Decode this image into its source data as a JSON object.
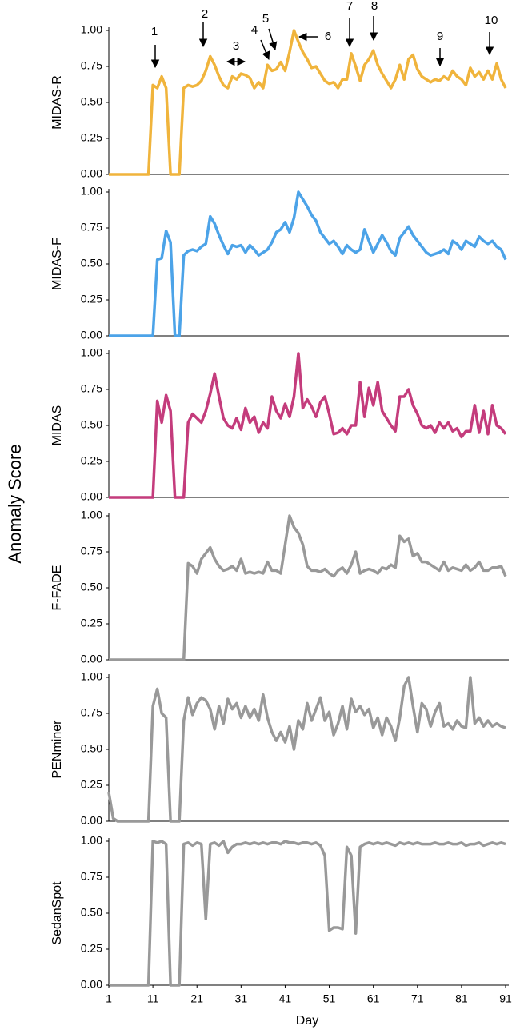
{
  "ylabel": "Anomaly Score",
  "chart_data": [
    {
      "type": "line",
      "ylabel": "MIDAS-R",
      "color": "#f0b43c",
      "ylim": [
        0,
        1
      ],
      "yticks": [
        {
          "value": 0,
          "label": "0.00"
        },
        {
          "value": 0.25,
          "label": "0.25"
        },
        {
          "value": 0.5,
          "label": "0.50"
        },
        {
          "value": 0.75,
          "label": "0.75"
        },
        {
          "value": 1,
          "label": "1.00"
        }
      ],
      "annotations": [
        "1",
        "2",
        "3",
        "4",
        "5",
        "6",
        "7",
        "8",
        "9",
        "10"
      ],
      "values": [
        0,
        0,
        0,
        0,
        0,
        0,
        0,
        0,
        0,
        0,
        0.62,
        0.6,
        0.68,
        0.6,
        0,
        0,
        0,
        0.6,
        0.62,
        0.61,
        0.62,
        0.65,
        0.72,
        0.82,
        0.76,
        0.68,
        0.62,
        0.6,
        0.68,
        0.66,
        0.7,
        0.69,
        0.67,
        0.6,
        0.64,
        0.6,
        0.76,
        0.72,
        0.73,
        0.78,
        0.72,
        0.85,
        1.0,
        0.92,
        0.85,
        0.8,
        0.74,
        0.75,
        0.7,
        0.65,
        0.63,
        0.64,
        0.6,
        0.66,
        0.66,
        0.84,
        0.75,
        0.65,
        0.76,
        0.8,
        0.86,
        0.76,
        0.7,
        0.65,
        0.6,
        0.66,
        0.76,
        0.66,
        0.8,
        0.83,
        0.73,
        0.68,
        0.66,
        0.64,
        0.66,
        0.65,
        0.68,
        0.66,
        0.72,
        0.68,
        0.66,
        0.62,
        0.74,
        0.68,
        0.71,
        0.66,
        0.72,
        0.66,
        0.77,
        0.66,
        0.6
      ]
    },
    {
      "type": "line",
      "ylabel": "MIDAS-F",
      "color": "#4ca3e8",
      "ylim": [
        0,
        1
      ],
      "yticks": [
        {
          "value": 0,
          "label": "0.00"
        },
        {
          "value": 0.25,
          "label": "0.25"
        },
        {
          "value": 0.5,
          "label": "0.50"
        },
        {
          "value": 0.75,
          "label": "0.75"
        },
        {
          "value": 1,
          "label": "1.00"
        }
      ],
      "values": [
        0,
        0,
        0,
        0,
        0,
        0,
        0,
        0,
        0,
        0,
        0,
        0.53,
        0.54,
        0.73,
        0.65,
        0,
        0,
        0.56,
        0.59,
        0.6,
        0.59,
        0.62,
        0.64,
        0.83,
        0.78,
        0.7,
        0.63,
        0.57,
        0.63,
        0.62,
        0.63,
        0.58,
        0.63,
        0.6,
        0.56,
        0.58,
        0.6,
        0.65,
        0.72,
        0.74,
        0.79,
        0.72,
        0.82,
        1.0,
        0.95,
        0.9,
        0.84,
        0.8,
        0.72,
        0.68,
        0.64,
        0.66,
        0.62,
        0.57,
        0.63,
        0.6,
        0.58,
        0.6,
        0.74,
        0.66,
        0.58,
        0.64,
        0.7,
        0.65,
        0.59,
        0.56,
        0.68,
        0.72,
        0.76,
        0.7,
        0.66,
        0.62,
        0.58,
        0.56,
        0.57,
        0.58,
        0.6,
        0.57,
        0.66,
        0.64,
        0.6,
        0.66,
        0.64,
        0.62,
        0.69,
        0.66,
        0.64,
        0.66,
        0.62,
        0.6,
        0.53
      ]
    },
    {
      "type": "line",
      "ylabel": "MIDAS",
      "color": "#c43c7c",
      "ylim": [
        0,
        1
      ],
      "yticks": [
        {
          "value": 0,
          "label": "0.00"
        },
        {
          "value": 0.25,
          "label": "0.25"
        },
        {
          "value": 0.5,
          "label": "0.50"
        },
        {
          "value": 0.75,
          "label": "0.75"
        },
        {
          "value": 1,
          "label": "1.00"
        }
      ],
      "values": [
        0,
        0,
        0,
        0,
        0,
        0,
        0,
        0,
        0,
        0,
        0,
        0.67,
        0.52,
        0.71,
        0.6,
        0,
        0,
        0,
        0.52,
        0.58,
        0.55,
        0.52,
        0.6,
        0.72,
        0.86,
        0.7,
        0.55,
        0.5,
        0.48,
        0.55,
        0.47,
        0.62,
        0.52,
        0.56,
        0.45,
        0.52,
        0.48,
        0.7,
        0.6,
        0.55,
        0.65,
        0.56,
        0.7,
        1.0,
        0.62,
        0.68,
        0.63,
        0.56,
        0.66,
        0.7,
        0.58,
        0.44,
        0.45,
        0.48,
        0.44,
        0.5,
        0.5,
        0.8,
        0.56,
        0.76,
        0.64,
        0.8,
        0.6,
        0.55,
        0.5,
        0.46,
        0.7,
        0.7,
        0.75,
        0.64,
        0.58,
        0.5,
        0.48,
        0.5,
        0.45,
        0.52,
        0.48,
        0.52,
        0.46,
        0.48,
        0.42,
        0.46,
        0.46,
        0.64,
        0.45,
        0.6,
        0.44,
        0.64,
        0.5,
        0.48,
        0.44
      ]
    },
    {
      "type": "line",
      "ylabel": "F-FADE",
      "color": "#999999",
      "ylim": [
        0,
        1
      ],
      "yticks": [
        {
          "value": 0,
          "label": "0.00"
        },
        {
          "value": 0.25,
          "label": "0.25"
        },
        {
          "value": 0.5,
          "label": "0.50"
        },
        {
          "value": 0.75,
          "label": "0.75"
        },
        {
          "value": 1,
          "label": "1.00"
        }
      ],
      "values": [
        0,
        0,
        0,
        0,
        0,
        0,
        0,
        0,
        0,
        0,
        0,
        0,
        0,
        0,
        0,
        0,
        0,
        0,
        0.67,
        0.65,
        0.6,
        0.7,
        0.74,
        0.78,
        0.7,
        0.65,
        0.62,
        0.63,
        0.65,
        0.62,
        0.7,
        0.6,
        0.61,
        0.6,
        0.61,
        0.6,
        0.68,
        0.62,
        0.62,
        0.6,
        0.8,
        1.0,
        0.92,
        0.88,
        0.8,
        0.65,
        0.62,
        0.62,
        0.61,
        0.63,
        0.6,
        0.58,
        0.62,
        0.64,
        0.6,
        0.66,
        0.75,
        0.6,
        0.62,
        0.63,
        0.62,
        0.6,
        0.64,
        0.63,
        0.66,
        0.64,
        0.86,
        0.82,
        0.84,
        0.72,
        0.74,
        0.68,
        0.68,
        0.66,
        0.64,
        0.62,
        0.68,
        0.62,
        0.64,
        0.63,
        0.62,
        0.66,
        0.62,
        0.64,
        0.68,
        0.62,
        0.62,
        0.64,
        0.64,
        0.65,
        0.58
      ]
    },
    {
      "type": "line",
      "ylabel": "PENminer",
      "color": "#999999",
      "ylim": [
        0,
        1
      ],
      "yticks": [
        {
          "value": 0,
          "label": "0.00"
        },
        {
          "value": 0.25,
          "label": "0.25"
        },
        {
          "value": 0.5,
          "label": "0.50"
        },
        {
          "value": 0.75,
          "label": "0.75"
        },
        {
          "value": 1,
          "label": "1.00"
        }
      ],
      "values": [
        0.2,
        0.02,
        0,
        0,
        0,
        0,
        0,
        0,
        0,
        0,
        0.8,
        0.92,
        0.75,
        0.72,
        0,
        0,
        0,
        0.7,
        0.86,
        0.74,
        0.82,
        0.86,
        0.84,
        0.78,
        0.64,
        0.8,
        0.68,
        0.85,
        0.78,
        0.82,
        0.72,
        0.8,
        0.72,
        0.78,
        0.7,
        0.88,
        0.72,
        0.62,
        0.56,
        0.62,
        0.55,
        0.66,
        0.5,
        0.7,
        0.64,
        0.82,
        0.7,
        0.78,
        0.86,
        0.7,
        0.76,
        0.6,
        0.68,
        0.8,
        0.64,
        0.85,
        0.76,
        0.8,
        0.74,
        0.78,
        0.65,
        0.72,
        0.6,
        0.72,
        0.66,
        0.56,
        0.72,
        0.94,
        1.0,
        0.8,
        0.62,
        0.82,
        0.78,
        0.66,
        0.76,
        0.82,
        0.66,
        0.68,
        0.64,
        0.7,
        0.66,
        0.65,
        1.0,
        0.68,
        0.72,
        0.66,
        0.7,
        0.66,
        0.68,
        0.66,
        0.65
      ]
    },
    {
      "type": "line",
      "ylabel": "SedanSpot",
      "color": "#999999",
      "ylim": [
        0,
        1
      ],
      "yticks": [
        {
          "value": 0,
          "label": "0.00"
        },
        {
          "value": 0.25,
          "label": "0.25"
        },
        {
          "value": 0.5,
          "label": "0.50"
        },
        {
          "value": 0.75,
          "label": "0.75"
        },
        {
          "value": 1,
          "label": "1.00"
        }
      ],
      "xlabel": "Day",
      "xlim": [
        1,
        91
      ],
      "xticks": [
        1,
        11,
        21,
        31,
        41,
        51,
        61,
        71,
        81,
        91
      ],
      "x": [
        1,
        2,
        3,
        4,
        5,
        6,
        7,
        8,
        9,
        10,
        11,
        12,
        13,
        14,
        15,
        16,
        17,
        18,
        19,
        20,
        21,
        22,
        23,
        24,
        25,
        26,
        27,
        28,
        29,
        30,
        31,
        32,
        33,
        34,
        35,
        36,
        37,
        38,
        39,
        40,
        41,
        42,
        43,
        44,
        45,
        46,
        47,
        48,
        49,
        50,
        51,
        52,
        53,
        54,
        55,
        56,
        57,
        58,
        59,
        60,
        61,
        62,
        63,
        64,
        65,
        66,
        67,
        68,
        69,
        70,
        71,
        72,
        73,
        74,
        75,
        76,
        77,
        78,
        79,
        80,
        81,
        82,
        83,
        84,
        85,
        86,
        87,
        88,
        89,
        90,
        91
      ],
      "values": [
        0,
        0,
        0,
        0,
        0,
        0,
        0,
        0,
        0,
        0,
        1.0,
        0.99,
        1.0,
        0.98,
        0,
        0,
        0,
        0.98,
        0.99,
        0.97,
        0.99,
        0.98,
        0.46,
        0.98,
        0.99,
        0.97,
        1.0,
        0.92,
        0.96,
        0.98,
        0.98,
        0.99,
        0.98,
        0.99,
        0.98,
        0.99,
        0.98,
        0.99,
        0.99,
        0.98,
        1.0,
        0.99,
        0.99,
        0.98,
        0.99,
        0.99,
        0.98,
        0.99,
        0.97,
        0.9,
        0.38,
        0.4,
        0.4,
        0.39,
        0.96,
        0.9,
        0.36,
        0.96,
        0.98,
        0.99,
        0.98,
        0.99,
        0.98,
        0.99,
        0.98,
        0.97,
        0.99,
        0.98,
        0.99,
        0.98,
        0.99,
        0.98,
        0.98,
        0.98,
        0.99,
        0.98,
        0.98,
        0.99,
        0.98,
        0.98,
        0.99,
        0.97,
        0.98,
        0.98,
        0.99,
        0.97,
        0.98,
        0.99,
        0.98,
        0.99,
        0.98
      ]
    }
  ]
}
